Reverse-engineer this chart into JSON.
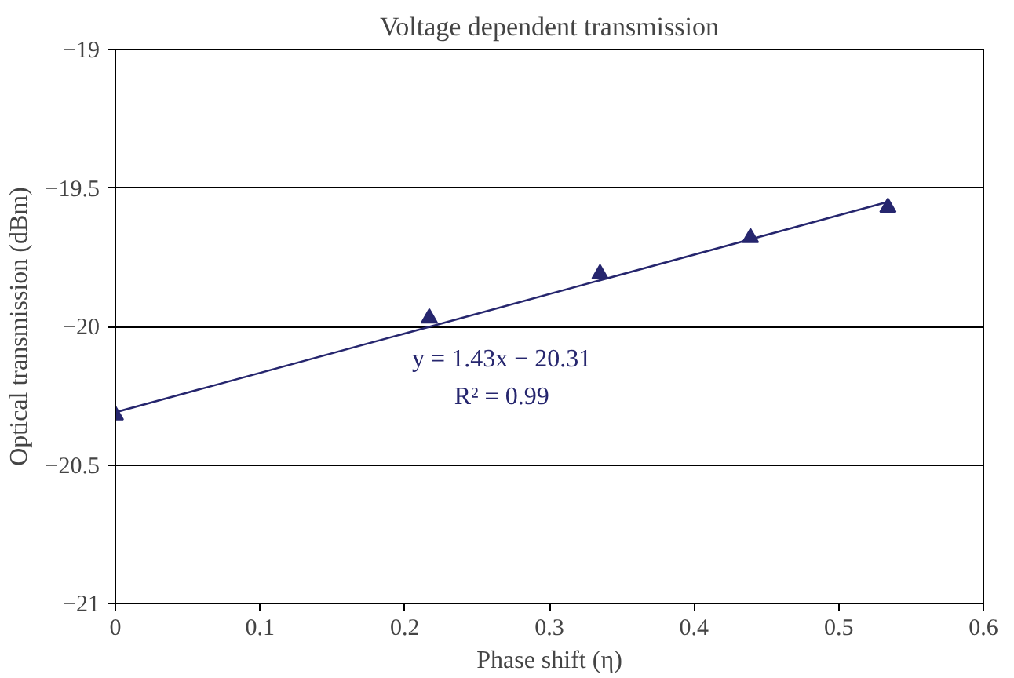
{
  "chart_data": {
    "type": "scatter",
    "title": "Voltage dependent transmission",
    "xlabel": "Phase shift (η)",
    "ylabel": "Optical transmission (dBm)",
    "x": [
      0,
      0.217,
      0.335,
      0.439,
      0.534
    ],
    "series": [
      {
        "color": "#26266e",
        "values": [
          -20.32,
          -19.97,
          -19.81,
          -19.68,
          -19.57
        ],
        "marker": "triangle"
      },
      {
        "type": "line",
        "color": "#26266e",
        "x": [
          0,
          0.534
        ],
        "values": [
          -20.31,
          -19.55
        ],
        "marker": "none"
      }
    ],
    "annotations": [
      "y = 1.43x − 20.31",
      "R² = 0.99"
    ],
    "xlim": [
      0,
      0.6
    ],
    "xticks": [
      0,
      0.1,
      0.2,
      0.3,
      0.4,
      0.5,
      0.6
    ],
    "ylim": [
      -21,
      -19
    ],
    "yticks": [
      -21,
      -20.5,
      -20,
      -19.5,
      -19
    ],
    "grid": "y"
  }
}
